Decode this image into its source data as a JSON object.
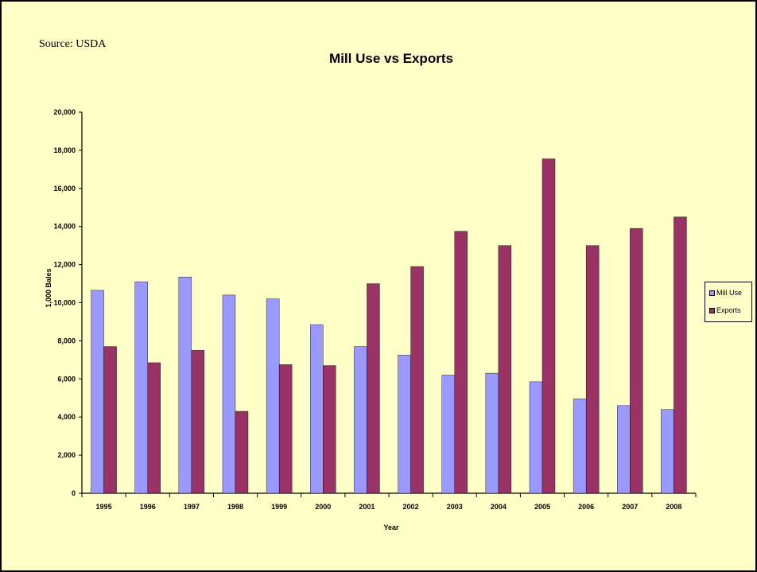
{
  "source": "Source: USDA",
  "chart_data": {
    "type": "bar",
    "title": "Mill Use vs Exports",
    "xlabel": "Year",
    "ylabel": "1,000 Bales",
    "ylim": [
      0,
      20000
    ],
    "yticks": [
      "0",
      "2,000",
      "4,000",
      "6,000",
      "8,000",
      "10,000",
      "12,000",
      "14,000",
      "16,000",
      "18,000",
      "20,000"
    ],
    "categories": [
      "1995",
      "1996",
      "1997",
      "1998",
      "1999",
      "2000",
      "2001",
      "2002",
      "2003",
      "2004",
      "2005",
      "2006",
      "2007",
      "2008"
    ],
    "series": [
      {
        "name": "Mill Use",
        "color": "#9999ff",
        "values": [
          10650,
          11100,
          11350,
          10400,
          10200,
          8850,
          7700,
          7250,
          6200,
          6300,
          5850,
          4950,
          4600,
          4400
        ]
      },
      {
        "name": "Exports",
        "color": "#993366",
        "values": [
          7700,
          6850,
          7500,
          4300,
          6750,
          6700,
          11000,
          11900,
          13750,
          13000,
          17550,
          13000,
          13900,
          14500
        ]
      }
    ],
    "legend_position": "right",
    "grid": false
  }
}
